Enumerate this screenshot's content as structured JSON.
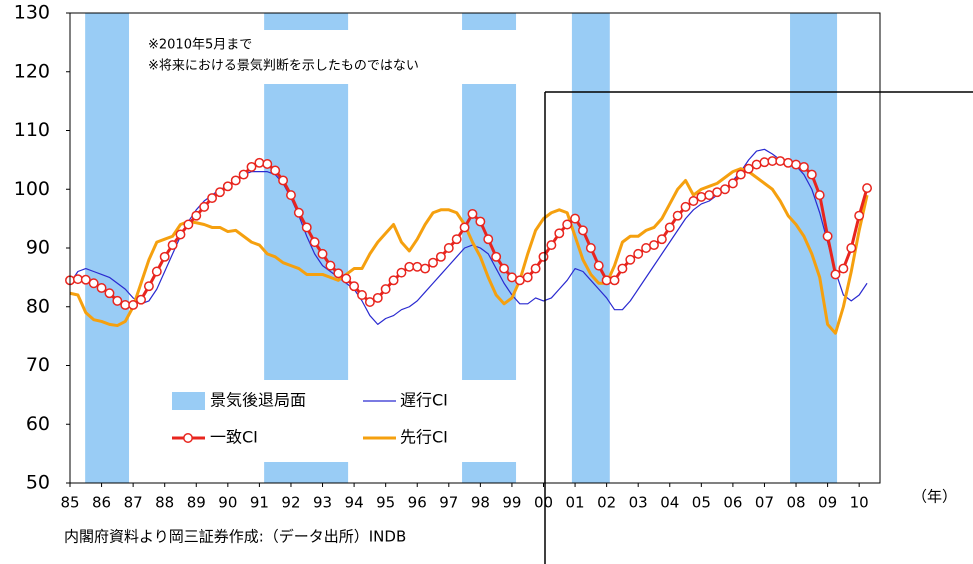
{
  "chart_data": {
    "type": "line",
    "annotations": [
      "※2010年5月まで",
      "※将来における景気判断を示したものではない"
    ],
    "source": "内閣府資料より岡三証券作成:（データ出所）INDB",
    "x_label": "（年）",
    "bands": {
      "name": "景気後退局面",
      "color": "#99ccf5",
      "ranges": [
        [
          1985.48,
          1986.87
        ],
        [
          1991.15,
          1993.81
        ],
        [
          1997.42,
          1999.13
        ],
        [
          2000.9,
          2002.1
        ],
        [
          2007.81,
          2009.3
        ]
      ]
    },
    "x": [
      1985,
      1985.25,
      1985.5,
      1985.75,
      1986,
      1986.25,
      1986.5,
      1986.75,
      1987,
      1987.25,
      1987.5,
      1987.75,
      1988,
      1988.25,
      1988.5,
      1988.75,
      1989,
      1989.25,
      1989.5,
      1989.75,
      1990,
      1990.25,
      1990.5,
      1990.75,
      1991,
      1991.25,
      1991.5,
      1991.75,
      1992,
      1992.25,
      1992.5,
      1992.75,
      1993,
      1993.25,
      1993.5,
      1993.75,
      1994,
      1994.25,
      1994.5,
      1994.75,
      1995,
      1995.25,
      1995.5,
      1995.75,
      1996,
      1996.25,
      1996.5,
      1996.75,
      1997,
      1997.25,
      1997.5,
      1997.75,
      1998,
      1998.25,
      1998.5,
      1998.75,
      1999,
      1999.25,
      1999.5,
      1999.75,
      2000,
      2000.25,
      2000.5,
      2000.75,
      2001,
      2001.25,
      2001.5,
      2001.75,
      2002,
      2002.25,
      2002.5,
      2002.75,
      2003,
      2003.25,
      2003.5,
      2003.75,
      2004,
      2004.25,
      2004.5,
      2004.75,
      2005,
      2005.25,
      2005.5,
      2005.75,
      2006,
      2006.25,
      2006.5,
      2006.75,
      2007,
      2007.25,
      2007.5,
      2007.75,
      2008,
      2008.25,
      2008.5,
      2008.75,
      2009,
      2009.25,
      2009.5,
      2009.75,
      2010,
      2010.25
    ],
    "series": [
      {
        "name": "遅行CI",
        "color": "#2a2ad0",
        "width": 1.2,
        "markers": false,
        "values": [
          84,
          86,
          86.5,
          86,
          85.5,
          85,
          84,
          83,
          81.5,
          80.5,
          81,
          83,
          86,
          89,
          92,
          94.5,
          96.5,
          98,
          99,
          100,
          100.5,
          101.5,
          102.5,
          103,
          103,
          103,
          102.5,
          101,
          98.5,
          95.5,
          92,
          89,
          87,
          86,
          85,
          84,
          83,
          81,
          78.5,
          77,
          78,
          78.5,
          79.5,
          80,
          81,
          82.5,
          84,
          85.5,
          87,
          88.5,
          90,
          90.5,
          90,
          89,
          86.5,
          84,
          82,
          80.5,
          80.5,
          81.5,
          81,
          81.5,
          83,
          84.5,
          86.5,
          86,
          84.5,
          83,
          81.5,
          79.5,
          79.5,
          81,
          83,
          85,
          87,
          89,
          91,
          93,
          95,
          96.5,
          97.5,
          98,
          99,
          100,
          101.5,
          103,
          105,
          106.5,
          106.8,
          106,
          105,
          104.5,
          104,
          102.5,
          100,
          96,
          91,
          86,
          82,
          81,
          82,
          84
        ]
      },
      {
        "name": "先行CI",
        "color": "#f5a00f",
        "width": 3,
        "markers": false,
        "values": [
          82.3,
          82,
          79,
          77.8,
          77.5,
          77,
          76.8,
          77.5,
          80,
          84,
          88,
          91,
          91.5,
          92,
          94,
          94.5,
          94.3,
          94,
          93.5,
          93.5,
          92.8,
          93,
          92,
          91,
          90.5,
          89,
          88.5,
          87.5,
          87,
          86.5,
          85.5,
          85.5,
          85.5,
          85,
          84.5,
          85.5,
          86.5,
          86.5,
          89,
          91,
          92.5,
          94,
          91,
          89.5,
          91.5,
          94,
          96,
          96.5,
          96.5,
          96,
          94,
          91,
          88.5,
          85,
          82,
          80.5,
          81.5,
          84.5,
          89,
          93,
          95,
          96,
          96.5,
          96,
          92,
          88,
          85.5,
          84,
          84,
          87,
          91,
          92,
          92,
          93,
          93.5,
          95,
          97.5,
          100,
          101.5,
          99,
          100,
          100.5,
          101,
          102,
          103,
          103.5,
          103,
          102,
          101,
          100,
          98,
          95.5,
          94,
          92,
          89,
          85,
          77,
          75.5,
          80,
          86,
          93,
          99
        ]
      },
      {
        "name": "一致CI",
        "color": "#e8251e",
        "width": 3,
        "markers": true,
        "values": [
          84.5,
          84.7,
          84.6,
          84,
          83.2,
          82.3,
          81,
          80.3,
          80.3,
          81.2,
          83.5,
          86,
          88.5,
          90.5,
          92.3,
          94,
          95.5,
          97,
          98.5,
          99.5,
          100.5,
          101.5,
          102.5,
          103.8,
          104.5,
          104.3,
          103.2,
          101.5,
          99,
          96,
          93.5,
          91,
          89,
          87,
          85.7,
          84.8,
          83.5,
          82,
          80.8,
          81.5,
          83,
          84.5,
          85.8,
          86.8,
          86.8,
          86.5,
          87.5,
          88.5,
          90,
          91.5,
          93.5,
          95.8,
          94.5,
          91.5,
          88.5,
          86.5,
          85,
          84.5,
          85,
          86.5,
          88.5,
          90.5,
          92.5,
          94,
          95,
          93,
          90,
          87,
          84.5,
          84.5,
          86.5,
          88,
          89,
          90,
          90.5,
          91.5,
          93.5,
          95.5,
          97,
          98,
          98.7,
          99,
          99.5,
          100,
          101,
          102.5,
          103.5,
          104.2,
          104.6,
          104.8,
          104.8,
          104.5,
          104.2,
          103.8,
          102.5,
          99,
          92,
          85.5,
          86.5,
          90,
          95.5,
          100.2
        ]
      }
    ],
    "xlim": [
      1985,
      2010.66
    ],
    "xticks": [
      {
        "value": 1985,
        "label": "85"
      },
      {
        "value": 1986,
        "label": "86"
      },
      {
        "value": 1987,
        "label": "87"
      },
      {
        "value": 1988,
        "label": "88"
      },
      {
        "value": 1989,
        "label": "89"
      },
      {
        "value": 1990,
        "label": "90"
      },
      {
        "value": 1991,
        "label": "91"
      },
      {
        "value": 1992,
        "label": "92"
      },
      {
        "value": 1993,
        "label": "93"
      },
      {
        "value": 1994,
        "label": "94"
      },
      {
        "value": 1995,
        "label": "95"
      },
      {
        "value": 1996,
        "label": "96"
      },
      {
        "value": 1997,
        "label": "97"
      },
      {
        "value": 1998,
        "label": "98"
      },
      {
        "value": 1999,
        "label": "99"
      },
      {
        "value": 2000,
        "label": "00"
      },
      {
        "value": 2001,
        "label": "01"
      },
      {
        "value": 2002,
        "label": "02"
      },
      {
        "value": 2003,
        "label": "03"
      },
      {
        "value": 2004,
        "label": "04"
      },
      {
        "value": 2005,
        "label": "05"
      },
      {
        "value": 2006,
        "label": "06"
      },
      {
        "value": 2007,
        "label": "07"
      },
      {
        "value": 2008,
        "label": "08"
      },
      {
        "value": 2009,
        "label": "09"
      },
      {
        "value": 2010,
        "label": "10"
      }
    ],
    "ylim": [
      50,
      130
    ],
    "yticks": [
      50,
      60,
      70,
      80,
      90,
      100,
      110,
      120,
      130
    ]
  }
}
